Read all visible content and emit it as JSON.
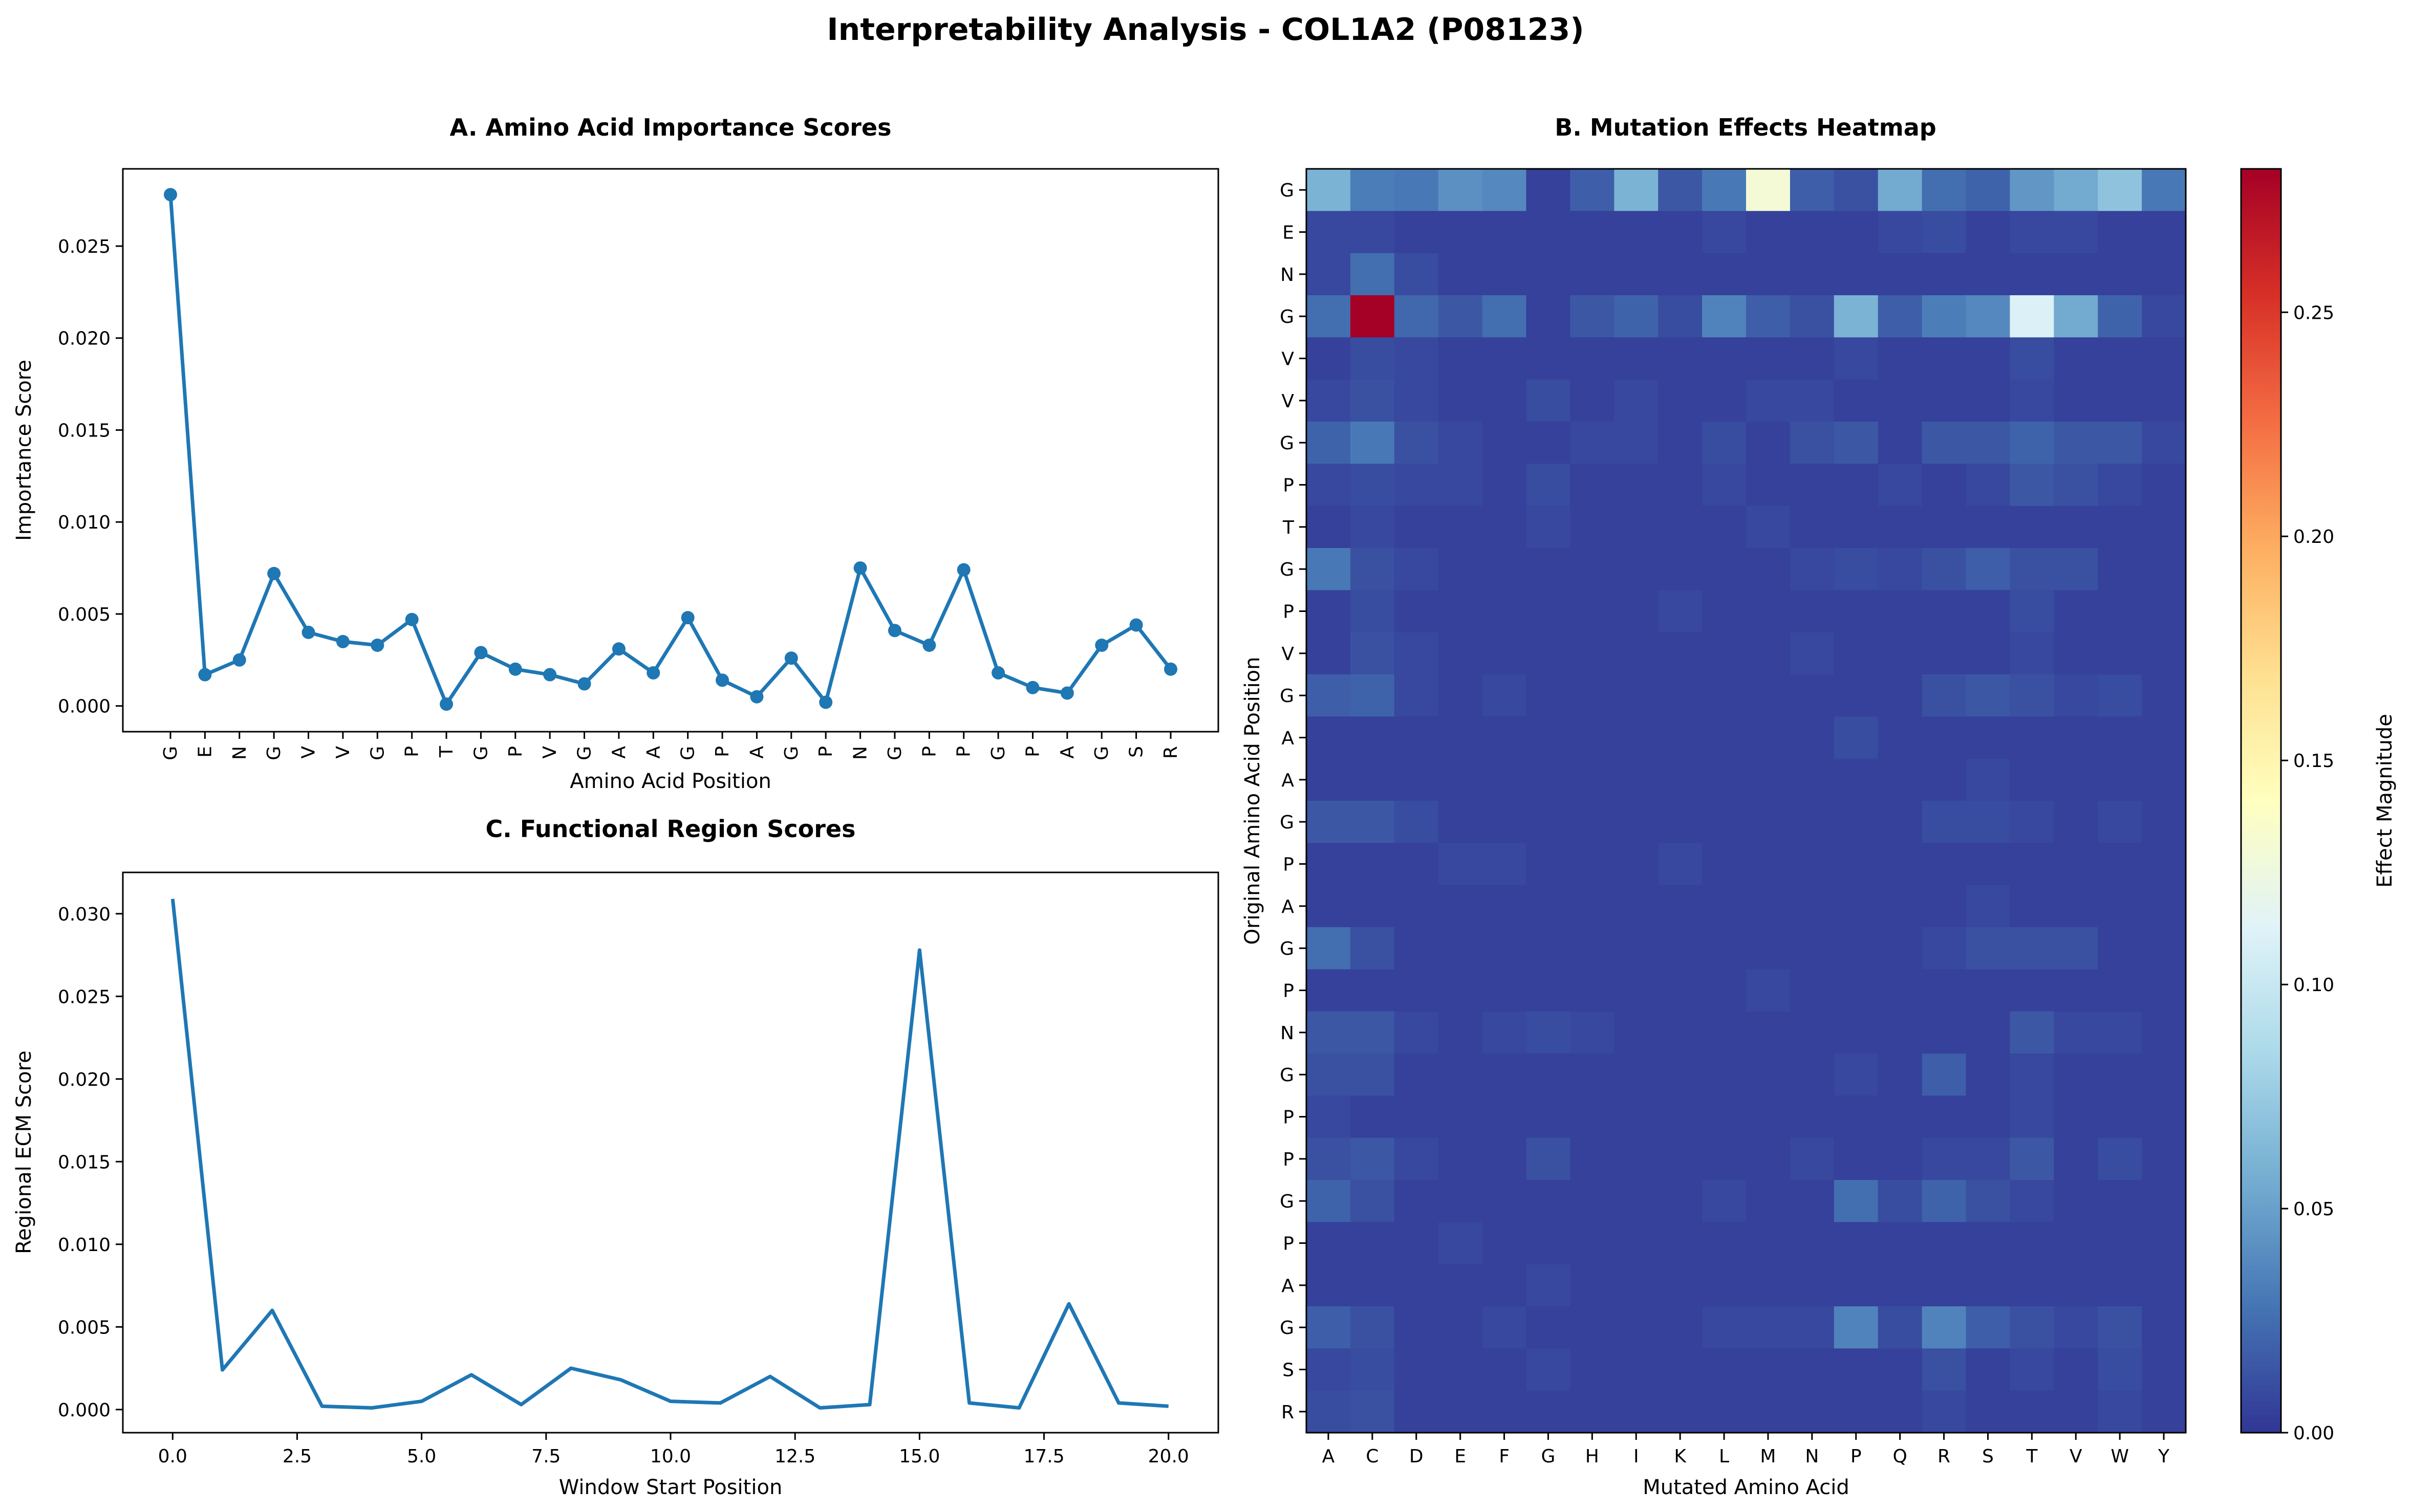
{
  "figure": {
    "suptitle": "Interpretability Analysis - COL1A2 (P08123)"
  },
  "chart_data": [
    {
      "id": "A",
      "type": "line",
      "title": "A. Amino Acid Importance Scores",
      "xlabel": "Amino Acid Position",
      "ylabel": "Importance Score",
      "categories": [
        "G",
        "E",
        "N",
        "G",
        "V",
        "V",
        "G",
        "P",
        "T",
        "G",
        "P",
        "V",
        "G",
        "A",
        "A",
        "G",
        "P",
        "A",
        "G",
        "P",
        "N",
        "G",
        "P",
        "P",
        "G",
        "P",
        "A",
        "G",
        "S",
        "R"
      ],
      "values": [
        0.0278,
        0.0017,
        0.0025,
        0.0072,
        0.004,
        0.0035,
        0.0033,
        0.0047,
        0.0001,
        0.0029,
        0.002,
        0.0017,
        0.0012,
        0.0031,
        0.0018,
        0.0048,
        0.0014,
        0.0005,
        0.0026,
        0.0002,
        0.0075,
        0.0041,
        0.0033,
        0.0074,
        0.0018,
        0.001,
        0.0007,
        0.0033,
        0.0044,
        0.002
      ],
      "ylim": [
        -0.0014,
        0.0292
      ],
      "yticks": [
        "0.000",
        "0.005",
        "0.010",
        "0.015",
        "0.020",
        "0.025"
      ],
      "ytick_values": [
        0.0,
        0.005,
        0.01,
        0.015,
        0.02,
        0.025
      ],
      "markers": true,
      "color": "#1f77b4"
    },
    {
      "id": "B",
      "type": "heatmap",
      "title": "B. Mutation Effects Heatmap",
      "xlabel": "Mutated Amino Acid",
      "ylabel": "Original Amino Acid Position",
      "x_categories": [
        "A",
        "C",
        "D",
        "E",
        "F",
        "G",
        "H",
        "I",
        "K",
        "L",
        "M",
        "N",
        "P",
        "Q",
        "R",
        "S",
        "T",
        "V",
        "W",
        "Y"
      ],
      "y_categories": [
        "G",
        "E",
        "N",
        "G",
        "V",
        "V",
        "G",
        "P",
        "T",
        "G",
        "P",
        "V",
        "G",
        "A",
        "A",
        "G",
        "P",
        "A",
        "G",
        "P",
        "N",
        "G",
        "P",
        "P",
        "G",
        "P",
        "A",
        "G",
        "S",
        "R"
      ],
      "colorbar_label": "Effect Magnitude",
      "colorbar_ticks": [
        "0.00",
        "0.05",
        "0.10",
        "0.15",
        "0.20",
        "0.25"
      ],
      "colorbar_tick_values": [
        0.0,
        0.05,
        0.1,
        0.15,
        0.2,
        0.25
      ],
      "vmin": 0.0,
      "vmax": 0.282,
      "colormap": "RdYlBu_r",
      "values": [
        [
          0.06,
          0.032,
          0.03,
          0.042,
          0.038,
          0.005,
          0.018,
          0.06,
          0.015,
          0.03,
          0.13,
          0.018,
          0.012,
          0.055,
          0.025,
          0.02,
          0.045,
          0.055,
          0.07,
          0.03
        ],
        [
          0.008,
          0.008,
          0.005,
          0.005,
          0.005,
          0.005,
          0.005,
          0.005,
          0.005,
          0.008,
          0.005,
          0.005,
          0.005,
          0.008,
          0.01,
          0.005,
          0.008,
          0.008,
          0.005,
          0.005
        ],
        [
          0.008,
          0.025,
          0.01,
          0.005,
          0.005,
          0.005,
          0.005,
          0.005,
          0.005,
          0.005,
          0.005,
          0.005,
          0.005,
          0.005,
          0.005,
          0.005,
          0.005,
          0.005,
          0.005,
          0.005
        ],
        [
          0.025,
          0.282,
          0.022,
          0.015,
          0.025,
          0.005,
          0.015,
          0.02,
          0.01,
          0.035,
          0.018,
          0.012,
          0.06,
          0.018,
          0.032,
          0.038,
          0.11,
          0.055,
          0.02,
          0.008
        ],
        [
          0.005,
          0.01,
          0.008,
          0.005,
          0.005,
          0.005,
          0.005,
          0.005,
          0.005,
          0.005,
          0.005,
          0.005,
          0.008,
          0.005,
          0.005,
          0.005,
          0.01,
          0.005,
          0.005,
          0.005
        ],
        [
          0.008,
          0.012,
          0.008,
          0.005,
          0.005,
          0.01,
          0.005,
          0.008,
          0.005,
          0.005,
          0.008,
          0.008,
          0.005,
          0.005,
          0.005,
          0.005,
          0.008,
          0.005,
          0.005,
          0.005
        ],
        [
          0.02,
          0.03,
          0.012,
          0.008,
          0.005,
          0.005,
          0.008,
          0.008,
          0.005,
          0.01,
          0.005,
          0.012,
          0.015,
          0.005,
          0.015,
          0.015,
          0.02,
          0.015,
          0.015,
          0.008
        ],
        [
          0.008,
          0.01,
          0.008,
          0.008,
          0.005,
          0.01,
          0.005,
          0.005,
          0.005,
          0.008,
          0.005,
          0.005,
          0.005,
          0.008,
          0.005,
          0.008,
          0.015,
          0.012,
          0.008,
          0.005
        ],
        [
          0.005,
          0.008,
          0.005,
          0.005,
          0.005,
          0.008,
          0.005,
          0.005,
          0.005,
          0.005,
          0.008,
          0.005,
          0.005,
          0.005,
          0.005,
          0.005,
          0.005,
          0.005,
          0.005,
          0.005
        ],
        [
          0.03,
          0.012,
          0.008,
          0.005,
          0.005,
          0.005,
          0.005,
          0.005,
          0.005,
          0.005,
          0.005,
          0.008,
          0.01,
          0.008,
          0.012,
          0.018,
          0.012,
          0.012,
          0.005,
          0.005
        ],
        [
          0.005,
          0.01,
          0.005,
          0.005,
          0.005,
          0.005,
          0.005,
          0.005,
          0.008,
          0.005,
          0.005,
          0.005,
          0.005,
          0.005,
          0.005,
          0.005,
          0.01,
          0.005,
          0.005,
          0.005
        ],
        [
          0.005,
          0.012,
          0.008,
          0.005,
          0.005,
          0.005,
          0.005,
          0.005,
          0.005,
          0.005,
          0.005,
          0.008,
          0.005,
          0.005,
          0.005,
          0.005,
          0.008,
          0.005,
          0.005,
          0.005
        ],
        [
          0.018,
          0.02,
          0.008,
          0.005,
          0.008,
          0.005,
          0.005,
          0.005,
          0.005,
          0.005,
          0.005,
          0.005,
          0.005,
          0.005,
          0.012,
          0.015,
          0.012,
          0.008,
          0.01,
          0.005
        ],
        [
          0.005,
          0.005,
          0.005,
          0.005,
          0.005,
          0.005,
          0.005,
          0.005,
          0.005,
          0.005,
          0.005,
          0.005,
          0.01,
          0.005,
          0.005,
          0.005,
          0.005,
          0.005,
          0.005,
          0.005
        ],
        [
          0.005,
          0.005,
          0.005,
          0.005,
          0.005,
          0.005,
          0.005,
          0.005,
          0.005,
          0.005,
          0.005,
          0.005,
          0.005,
          0.005,
          0.005,
          0.008,
          0.005,
          0.005,
          0.005,
          0.005
        ],
        [
          0.015,
          0.015,
          0.01,
          0.005,
          0.005,
          0.005,
          0.005,
          0.005,
          0.005,
          0.005,
          0.005,
          0.005,
          0.005,
          0.005,
          0.01,
          0.01,
          0.008,
          0.005,
          0.008,
          0.005
        ],
        [
          0.005,
          0.005,
          0.005,
          0.008,
          0.008,
          0.005,
          0.005,
          0.005,
          0.008,
          0.005,
          0.005,
          0.005,
          0.005,
          0.005,
          0.005,
          0.005,
          0.005,
          0.005,
          0.005,
          0.005
        ],
        [
          0.005,
          0.005,
          0.005,
          0.005,
          0.005,
          0.005,
          0.005,
          0.005,
          0.005,
          0.005,
          0.005,
          0.005,
          0.005,
          0.005,
          0.005,
          0.008,
          0.005,
          0.005,
          0.005,
          0.005
        ],
        [
          0.025,
          0.012,
          0.005,
          0.005,
          0.005,
          0.005,
          0.005,
          0.005,
          0.005,
          0.005,
          0.005,
          0.005,
          0.005,
          0.005,
          0.008,
          0.012,
          0.012,
          0.012,
          0.005,
          0.005
        ],
        [
          0.005,
          0.005,
          0.005,
          0.005,
          0.005,
          0.005,
          0.005,
          0.005,
          0.005,
          0.005,
          0.008,
          0.005,
          0.005,
          0.005,
          0.005,
          0.005,
          0.005,
          0.005,
          0.005,
          0.005
        ],
        [
          0.015,
          0.015,
          0.008,
          0.005,
          0.008,
          0.01,
          0.008,
          0.005,
          0.005,
          0.005,
          0.005,
          0.005,
          0.005,
          0.005,
          0.005,
          0.005,
          0.015,
          0.008,
          0.008,
          0.005
        ],
        [
          0.012,
          0.012,
          0.005,
          0.005,
          0.005,
          0.005,
          0.005,
          0.005,
          0.005,
          0.005,
          0.005,
          0.005,
          0.008,
          0.005,
          0.018,
          0.005,
          0.008,
          0.005,
          0.005,
          0.005
        ],
        [
          0.008,
          0.005,
          0.005,
          0.005,
          0.005,
          0.005,
          0.005,
          0.005,
          0.005,
          0.005,
          0.005,
          0.005,
          0.005,
          0.005,
          0.005,
          0.005,
          0.008,
          0.005,
          0.005,
          0.005
        ],
        [
          0.012,
          0.015,
          0.008,
          0.005,
          0.005,
          0.012,
          0.005,
          0.005,
          0.005,
          0.005,
          0.005,
          0.008,
          0.005,
          0.005,
          0.008,
          0.008,
          0.015,
          0.005,
          0.01,
          0.005
        ],
        [
          0.02,
          0.012,
          0.005,
          0.005,
          0.005,
          0.005,
          0.005,
          0.005,
          0.005,
          0.008,
          0.005,
          0.005,
          0.025,
          0.01,
          0.02,
          0.012,
          0.008,
          0.005,
          0.005,
          0.005
        ],
        [
          0.005,
          0.005,
          0.005,
          0.008,
          0.005,
          0.005,
          0.005,
          0.005,
          0.005,
          0.005,
          0.005,
          0.005,
          0.005,
          0.005,
          0.005,
          0.005,
          0.005,
          0.005,
          0.005,
          0.005
        ],
        [
          0.005,
          0.005,
          0.005,
          0.005,
          0.005,
          0.008,
          0.005,
          0.005,
          0.005,
          0.005,
          0.005,
          0.005,
          0.005,
          0.005,
          0.005,
          0.005,
          0.005,
          0.005,
          0.005,
          0.005
        ],
        [
          0.018,
          0.012,
          0.005,
          0.005,
          0.008,
          0.005,
          0.005,
          0.005,
          0.005,
          0.008,
          0.008,
          0.008,
          0.035,
          0.01,
          0.035,
          0.018,
          0.012,
          0.008,
          0.012,
          0.005
        ],
        [
          0.008,
          0.01,
          0.005,
          0.005,
          0.005,
          0.008,
          0.005,
          0.005,
          0.005,
          0.005,
          0.005,
          0.005,
          0.005,
          0.005,
          0.012,
          0.005,
          0.008,
          0.005,
          0.01,
          0.005
        ],
        [
          0.01,
          0.012,
          0.005,
          0.005,
          0.005,
          0.005,
          0.005,
          0.005,
          0.005,
          0.005,
          0.005,
          0.005,
          0.005,
          0.005,
          0.008,
          0.005,
          0.005,
          0.005,
          0.008,
          0.005
        ]
      ]
    },
    {
      "id": "C",
      "type": "line",
      "title": "C. Functional Region Scores",
      "xlabel": "Window Start Position",
      "ylabel": "Regional ECM Score",
      "x": [
        0,
        1,
        2,
        3,
        4,
        5,
        6,
        7,
        8,
        9,
        10,
        11,
        12,
        13,
        14,
        15,
        16,
        17,
        18,
        19,
        20
      ],
      "values": [
        0.0309,
        0.0024,
        0.006,
        0.0002,
        0.0001,
        0.0005,
        0.0021,
        0.0003,
        0.0025,
        0.0018,
        0.0005,
        0.0004,
        0.002,
        0.0001,
        0.0003,
        0.0278,
        0.0004,
        0.0001,
        0.0064,
        0.0004,
        0.0002
      ],
      "xlim": [
        -1.0,
        21.0
      ],
      "ylim": [
        -0.0014,
        0.0325
      ],
      "xticks": [
        "0.0",
        "2.5",
        "5.0",
        "7.5",
        "10.0",
        "12.5",
        "15.0",
        "17.5",
        "20.0"
      ],
      "xtick_values": [
        0,
        2.5,
        5,
        7.5,
        10,
        12.5,
        15,
        17.5,
        20
      ],
      "yticks": [
        "0.000",
        "0.005",
        "0.010",
        "0.015",
        "0.020",
        "0.025",
        "0.030"
      ],
      "ytick_values": [
        0.0,
        0.005,
        0.01,
        0.015,
        0.02,
        0.025,
        0.03
      ],
      "markers": false,
      "color": "#1f77b4"
    }
  ]
}
